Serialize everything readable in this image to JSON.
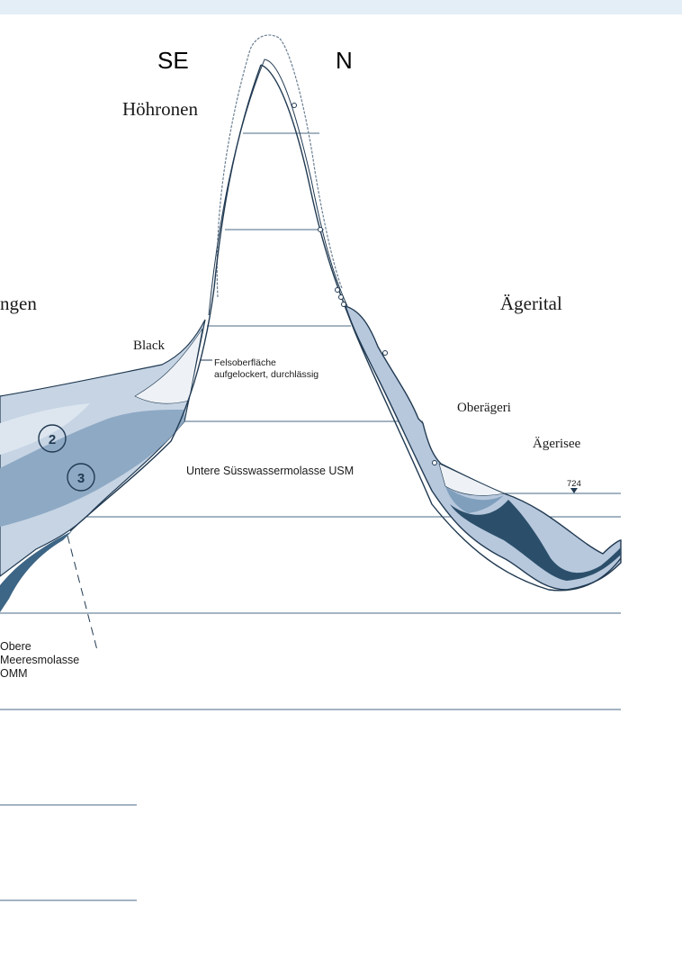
{
  "header": {
    "direction_left": "SE",
    "direction_right": "N"
  },
  "labels": {
    "peak": "Höhronen",
    "left_place": "ngen",
    "right_valley": "Ägerital",
    "black": "Black",
    "rock_surface_1": "Felsoberfläche",
    "rock_surface_2": "aufgelockert, durchlässig",
    "village": "Oberägeri",
    "lake": "Ägerisee",
    "lake_level": "724",
    "usm": "Untere Süsswassermolasse USM",
    "omm_1": "Obere",
    "omm_2": "Meeresmolasse",
    "omm_3": "OMM",
    "marker_2": "2",
    "marker_3": "3"
  },
  "colors": {
    "water_light": "#b7c8dd",
    "water_mid": "#7f9fbd",
    "water_dark": "#2b4f6b",
    "gravel_light": "#dde6ef",
    "line": "#213a52",
    "topbar": "#e3eef6"
  }
}
